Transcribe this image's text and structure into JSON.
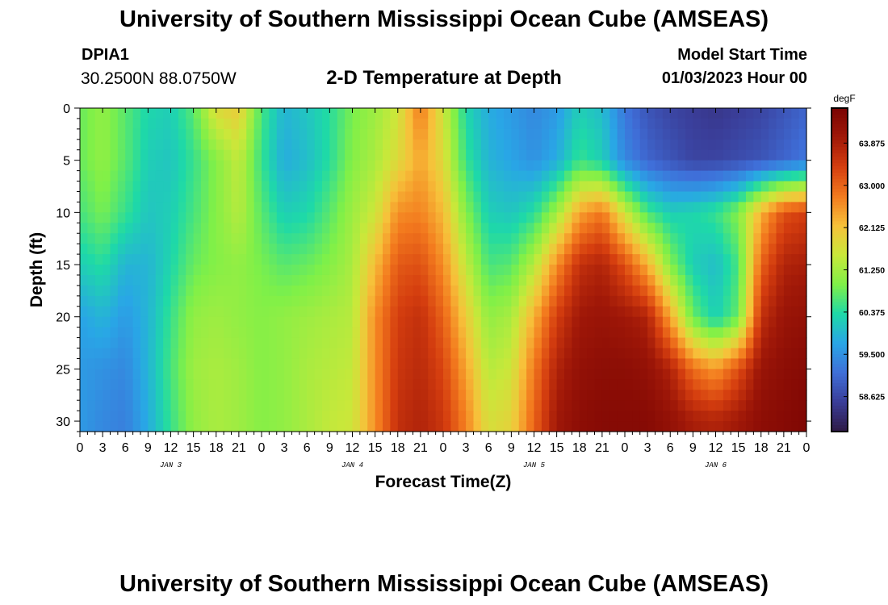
{
  "header": {
    "title": "University of Southern Mississippi Ocean Cube (AMSEAS)",
    "station_id": "DPIA1",
    "station_coords": "30.2500N  88.0750W",
    "plot_title": "2-D Temperature at Depth",
    "start_label": "Model Start Time",
    "start_value": "01/03/2023 Hour 00"
  },
  "footer": {
    "title": "University of Southern Mississippi Ocean Cube (AMSEAS)"
  },
  "chart_data": {
    "type": "heatmap",
    "title": "2-D Temperature at Depth",
    "xlabel": "Forecast Time(Z)",
    "ylabel": "Depth (ft)",
    "x_range_hours": [
      0,
      96
    ],
    "ylim": [
      0,
      31
    ],
    "y_inverted": true,
    "x_tick_labels": [
      "0",
      "3",
      "6",
      "9",
      "12",
      "15",
      "18",
      "21",
      "0",
      "3",
      "6",
      "9",
      "12",
      "15",
      "18",
      "21",
      "0",
      "3",
      "6",
      "9",
      "12",
      "15",
      "18",
      "21",
      "0",
      "3",
      "6",
      "9",
      "12",
      "15",
      "18",
      "21",
      "0"
    ],
    "y_ticks": [
      0,
      5,
      10,
      15,
      20,
      25,
      30
    ],
    "y_tick_labels": [
      "0",
      "5",
      "10",
      "15",
      "20",
      "25",
      "30"
    ],
    "day_labels": [
      {
        "label": "JAN 3",
        "hour": 12
      },
      {
        "label": "JAN 4",
        "hour": 36
      },
      {
        "label": "JAN 5",
        "hour": 60
      },
      {
        "label": "JAN 6",
        "hour": 84
      }
    ],
    "colorbar": {
      "unit": "degF",
      "range": [
        57.9,
        64.6
      ],
      "ticks": [
        58.625,
        59.5,
        60.375,
        61.25,
        62.125,
        63.0,
        63.875
      ],
      "tick_labels": [
        "58.625",
        "59.500",
        "60.375",
        "61.250",
        "62.125",
        "63.000",
        "63.875"
      ],
      "colormap": [
        "#2e1a45",
        "#3a3d98",
        "#3f6fd9",
        "#29a6e6",
        "#1ed9a8",
        "#7ff048",
        "#c9e83a",
        "#f7c13a",
        "#f37a1e",
        "#d53e0f",
        "#a01808",
        "#7a0403"
      ]
    },
    "temperature_grid": {
      "time_hours": [
        0,
        3,
        6,
        9,
        12,
        15,
        18,
        21,
        24,
        27,
        30,
        33,
        36,
        39,
        42,
        45,
        48,
        51,
        54,
        57,
        60,
        63,
        66,
        69,
        72,
        75,
        78,
        81,
        84,
        87,
        90,
        93,
        96
      ],
      "depth_ft": [
        0,
        5,
        10,
        15,
        20,
        25,
        30
      ],
      "values_degF": [
        [
          60.8,
          61.1,
          60.7,
          60.3,
          60.2,
          60.7,
          61.8,
          62.0,
          60.6,
          59.9,
          60.1,
          60.4,
          60.9,
          61.2,
          61.6,
          62.8,
          61.6,
          60.3,
          59.8,
          59.6,
          59.4,
          59.6,
          60.2,
          60.0,
          59.2,
          58.8,
          58.6,
          58.5,
          58.4,
          58.5,
          58.6,
          58.8,
          59.0
        ],
        [
          60.8,
          61.1,
          60.7,
          60.2,
          60.1,
          60.5,
          61.0,
          61.5,
          60.5,
          59.8,
          60.0,
          60.4,
          61.0,
          61.3,
          61.8,
          62.4,
          61.8,
          60.5,
          59.9,
          59.7,
          59.5,
          59.8,
          60.5,
          60.2,
          59.4,
          59.0,
          58.8,
          58.6,
          58.6,
          58.7,
          58.8,
          59.0,
          59.2
        ],
        [
          60.6,
          60.9,
          60.5,
          60.1,
          60.2,
          60.6,
          61.0,
          61.4,
          60.7,
          60.2,
          60.3,
          60.7,
          61.2,
          61.6,
          62.6,
          62.7,
          62.2,
          61.0,
          60.2,
          60.1,
          60.4,
          61.2,
          62.4,
          62.8,
          61.6,
          60.6,
          60.2,
          60.3,
          60.5,
          61.0,
          62.3,
          63.2,
          63.4
        ],
        [
          60.2,
          60.4,
          59.9,
          59.9,
          60.3,
          60.8,
          61.0,
          61.1,
          60.9,
          60.7,
          60.8,
          61.0,
          61.3,
          62.2,
          63.1,
          63.2,
          62.6,
          61.5,
          60.6,
          60.7,
          61.4,
          62.6,
          63.6,
          63.8,
          63.2,
          62.3,
          61.0,
          60.2,
          60.0,
          60.6,
          63.0,
          63.8,
          63.9
        ],
        [
          59.7,
          59.9,
          59.6,
          59.9,
          60.5,
          61.1,
          61.2,
          61.1,
          61.0,
          61.1,
          61.2,
          61.3,
          61.4,
          62.6,
          63.4,
          63.6,
          63.0,
          62.0,
          61.1,
          61.3,
          62.3,
          63.4,
          64.0,
          64.1,
          64.0,
          63.8,
          62.4,
          60.8,
          60.2,
          60.8,
          63.6,
          64.1,
          64.2
        ],
        [
          59.6,
          59.5,
          59.4,
          59.9,
          60.6,
          61.2,
          61.3,
          61.2,
          61.0,
          61.1,
          61.3,
          61.4,
          61.5,
          62.6,
          63.5,
          63.7,
          63.3,
          62.4,
          61.4,
          61.6,
          62.8,
          63.8,
          64.2,
          64.3,
          64.3,
          64.2,
          63.8,
          62.9,
          62.5,
          63.2,
          64.1,
          64.3,
          64.4
        ],
        [
          59.6,
          59.4,
          59.3,
          59.8,
          60.5,
          61.1,
          61.3,
          61.2,
          61.0,
          61.1,
          61.3,
          61.5,
          61.6,
          62.6,
          63.6,
          63.8,
          63.5,
          62.7,
          61.7,
          61.9,
          63.0,
          64.0,
          64.3,
          64.4,
          64.4,
          64.4,
          64.2,
          63.9,
          63.8,
          64.0,
          64.3,
          64.4,
          64.5
        ]
      ]
    }
  }
}
